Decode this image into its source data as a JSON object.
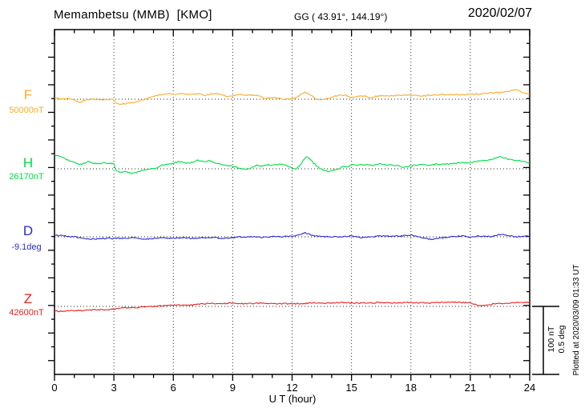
{
  "header": {
    "title": "Memambetsu (MMB)  [KMO]",
    "coords": "GG ( 43.91°, 144.19°)",
    "date": "2020/02/07"
  },
  "axis": {
    "xlabel": "U T (hour)",
    "tick_labels": [
      "0",
      "3",
      "6",
      "9",
      "12",
      "15",
      "18",
      "21",
      "24"
    ]
  },
  "scalebar": {
    "nt_label": "100 nT",
    "deg_label": "0.5 deg"
  },
  "footer": {
    "plotted_at": "Plotted at 2020/03/09 01:33 UT"
  },
  "chart_data": {
    "type": "line",
    "title": "Memambetsu (MMB) [KMO]",
    "subtitle": "GG ( 43.91°, 144.19°)",
    "date": "2020/02/07",
    "xlabel": "U T (hour)",
    "xlim": [
      0,
      24
    ],
    "x_ticks": [
      0,
      3,
      6,
      9,
      12,
      15,
      18,
      21,
      24
    ],
    "grid_hours": [
      3,
      6,
      9,
      12,
      15,
      18,
      21
    ],
    "grid": "dotted",
    "scale_bar": {
      "nT_per_div": 100,
      "deg_per_div": 0.5
    },
    "series": [
      {
        "name": "F",
        "reference": "50000nT",
        "unit": "nT",
        "color": "#FFAB26",
        "offsets": [
          [
            0,
            2
          ],
          [
            0.3,
            0
          ],
          [
            0.7,
            1
          ],
          [
            1,
            -1
          ],
          [
            1.3,
            -5
          ],
          [
            1.6,
            -1
          ],
          [
            2,
            0
          ],
          [
            2.4,
            -1
          ],
          [
            2.8,
            0
          ],
          [
            3,
            -1
          ],
          [
            3.15,
            -7
          ],
          [
            3.4,
            -7
          ],
          [
            3.7,
            -6
          ],
          [
            4,
            -5
          ],
          [
            4.3,
            -2
          ],
          [
            4.6,
            0
          ],
          [
            5,
            4
          ],
          [
            5.4,
            7
          ],
          [
            5.8,
            8
          ],
          [
            6.1,
            7
          ],
          [
            6.4,
            9
          ],
          [
            6.7,
            7
          ],
          [
            7,
            7
          ],
          [
            7.3,
            8
          ],
          [
            7.6,
            5
          ],
          [
            7.9,
            8
          ],
          [
            8.2,
            8
          ],
          [
            8.5,
            6
          ],
          [
            8.8,
            4
          ],
          [
            9.1,
            5
          ],
          [
            9.4,
            7
          ],
          [
            9.7,
            6
          ],
          [
            10,
            6
          ],
          [
            10.3,
            5
          ],
          [
            10.6,
            1
          ],
          [
            10.9,
            2
          ],
          [
            11.2,
            2
          ],
          [
            11.5,
            0
          ],
          [
            11.8,
            0
          ],
          [
            12.1,
            1
          ],
          [
            12.4,
            6
          ],
          [
            12.65,
            10
          ],
          [
            12.9,
            7
          ],
          [
            13.2,
            0
          ],
          [
            13.5,
            -1
          ],
          [
            13.8,
            1
          ],
          [
            14.1,
            4
          ],
          [
            14.4,
            6
          ],
          [
            14.7,
            6
          ],
          [
            15,
            2
          ],
          [
            15.3,
            4
          ],
          [
            15.6,
            5
          ],
          [
            15.9,
            2
          ],
          [
            16.2,
            4
          ],
          [
            16.5,
            5
          ],
          [
            17,
            5
          ],
          [
            17.5,
            6
          ],
          [
            18,
            6
          ],
          [
            18.5,
            5
          ],
          [
            19,
            6
          ],
          [
            19.5,
            7
          ],
          [
            20,
            7
          ],
          [
            20.5,
            7
          ],
          [
            21,
            7
          ],
          [
            21.5,
            8
          ],
          [
            22,
            9
          ],
          [
            22.5,
            10
          ],
          [
            23,
            12
          ],
          [
            23.3,
            15
          ],
          [
            23.6,
            10
          ],
          [
            24,
            7
          ]
        ]
      },
      {
        "name": "H",
        "reference": "26170nT",
        "unit": "nT",
        "color": "#00DD44",
        "offsets": [
          [
            0,
            20
          ],
          [
            0.25,
            19
          ],
          [
            0.5,
            15
          ],
          [
            0.75,
            12
          ],
          [
            1,
            9
          ],
          [
            1.25,
            6
          ],
          [
            1.5,
            8
          ],
          [
            1.75,
            11
          ],
          [
            2,
            8
          ],
          [
            2.25,
            7
          ],
          [
            2.5,
            9
          ],
          [
            2.75,
            8
          ],
          [
            3,
            8
          ],
          [
            3.1,
            -2
          ],
          [
            3.3,
            -5
          ],
          [
            3.6,
            -4
          ],
          [
            3.9,
            -7
          ],
          [
            4.2,
            -5
          ],
          [
            4.5,
            -2
          ],
          [
            4.8,
            0
          ],
          [
            5.1,
            1
          ],
          [
            5.4,
            5
          ],
          [
            5.7,
            6
          ],
          [
            6,
            8
          ],
          [
            6.3,
            11
          ],
          [
            6.6,
            8
          ],
          [
            6.9,
            9
          ],
          [
            7.2,
            12
          ],
          [
            7.5,
            11
          ],
          [
            7.8,
            12
          ],
          [
            8.1,
            9
          ],
          [
            8.4,
            7
          ],
          [
            8.7,
            5
          ],
          [
            9,
            4
          ],
          [
            9.3,
            1
          ],
          [
            9.6,
            -1
          ],
          [
            9.9,
            1
          ],
          [
            10.2,
            5
          ],
          [
            10.5,
            4
          ],
          [
            10.8,
            6
          ],
          [
            11.1,
            6
          ],
          [
            11.4,
            7
          ],
          [
            11.7,
            5
          ],
          [
            12,
            1
          ],
          [
            12.2,
            -1
          ],
          [
            12.45,
            7
          ],
          [
            12.7,
            18
          ],
          [
            12.9,
            14
          ],
          [
            13.1,
            8
          ],
          [
            13.35,
            2
          ],
          [
            13.6,
            -2
          ],
          [
            13.85,
            -4
          ],
          [
            14.1,
            -2
          ],
          [
            14.35,
            0
          ],
          [
            14.6,
            4
          ],
          [
            14.8,
            2
          ],
          [
            15.05,
            7
          ],
          [
            15.3,
            5
          ],
          [
            15.55,
            6
          ],
          [
            15.8,
            6
          ],
          [
            16.1,
            5
          ],
          [
            16.4,
            8
          ],
          [
            16.7,
            6
          ],
          [
            17,
            6
          ],
          [
            17.3,
            5
          ],
          [
            17.6,
            2
          ],
          [
            17.9,
            4
          ],
          [
            18.2,
            5
          ],
          [
            18.5,
            6
          ],
          [
            18.8,
            5
          ],
          [
            19.1,
            6
          ],
          [
            19.4,
            7
          ],
          [
            19.7,
            7
          ],
          [
            20,
            7
          ],
          [
            20.3,
            8
          ],
          [
            20.6,
            9
          ],
          [
            21,
            9
          ],
          [
            21.3,
            11
          ],
          [
            21.6,
            12
          ],
          [
            21.9,
            13
          ],
          [
            22.2,
            15
          ],
          [
            22.5,
            18
          ],
          [
            22.8,
            15
          ],
          [
            23.1,
            13
          ],
          [
            23.4,
            12
          ],
          [
            23.7,
            11
          ],
          [
            24,
            8
          ]
        ]
      },
      {
        "name": "D",
        "reference": "-9.1deg",
        "unit": "deg",
        "color": "#2A2ACD",
        "offsets": [
          [
            0,
            0.012
          ],
          [
            0.5,
            0.006
          ],
          [
            1,
            0
          ],
          [
            1.5,
            -0.012
          ],
          [
            2,
            -0.018
          ],
          [
            2.5,
            -0.012
          ],
          [
            3,
            -0.012
          ],
          [
            3.5,
            -0.012
          ],
          [
            4,
            -0.006
          ],
          [
            4.5,
            -0.018
          ],
          [
            5,
            -0.012
          ],
          [
            5.5,
            -0.006
          ],
          [
            6,
            -0.012
          ],
          [
            6.5,
            -0.006
          ],
          [
            7,
            -0.012
          ],
          [
            7.5,
            -0.006
          ],
          [
            8,
            -0.006
          ],
          [
            8.5,
            -0.012
          ],
          [
            9,
            -0.006
          ],
          [
            9.5,
            0
          ],
          [
            10,
            0
          ],
          [
            10.5,
            -0.006
          ],
          [
            11,
            0
          ],
          [
            11.5,
            0
          ],
          [
            12,
            0.006
          ],
          [
            12.4,
            0.018
          ],
          [
            12.65,
            0.03
          ],
          [
            12.9,
            0.018
          ],
          [
            13.2,
            0.006
          ],
          [
            13.5,
            0
          ],
          [
            14,
            0
          ],
          [
            14.5,
            0
          ],
          [
            15,
            0.006
          ],
          [
            15.5,
            -0.006
          ],
          [
            16,
            0
          ],
          [
            16.5,
            0.006
          ],
          [
            17,
            0.006
          ],
          [
            17.5,
            0.006
          ],
          [
            18,
            0.012
          ],
          [
            18.3,
            0.006
          ],
          [
            18.6,
            -0.012
          ],
          [
            19,
            -0.018
          ],
          [
            19.4,
            -0.012
          ],
          [
            19.7,
            -0.006
          ],
          [
            20,
            0
          ],
          [
            20.5,
            0.006
          ],
          [
            21,
            0
          ],
          [
            21.5,
            0.006
          ],
          [
            22,
            0
          ],
          [
            22.3,
            0.012
          ],
          [
            22.6,
            0.018
          ],
          [
            23,
            0.006
          ],
          [
            23.4,
            0
          ],
          [
            23.7,
            0.006
          ],
          [
            24,
            0
          ]
        ]
      },
      {
        "name": "Z",
        "reference": "42600nT",
        "unit": "nT",
        "color": "#E62222",
        "offsets": [
          [
            0,
            -7
          ],
          [
            0.5,
            -7
          ],
          [
            1,
            -6
          ],
          [
            1.5,
            -6
          ],
          [
            2,
            -5
          ],
          [
            2.5,
            -5
          ],
          [
            3,
            -4
          ],
          [
            3.5,
            -2
          ],
          [
            4,
            -2
          ],
          [
            4.5,
            -1
          ],
          [
            5,
            0
          ],
          [
            5.5,
            1
          ],
          [
            6,
            2
          ],
          [
            6.5,
            2
          ],
          [
            7,
            2
          ],
          [
            7.5,
            4
          ],
          [
            8,
            4
          ],
          [
            8.5,
            4
          ],
          [
            9,
            5
          ],
          [
            9.5,
            4
          ],
          [
            10,
            4
          ],
          [
            10.5,
            5
          ],
          [
            11,
            4
          ],
          [
            11.5,
            4
          ],
          [
            12,
            4
          ],
          [
            12.5,
            4
          ],
          [
            13,
            5
          ],
          [
            13.5,
            5
          ],
          [
            14,
            5
          ],
          [
            14.5,
            6
          ],
          [
            15,
            5
          ],
          [
            15.5,
            5
          ],
          [
            16,
            5
          ],
          [
            16.5,
            6
          ],
          [
            17,
            5
          ],
          [
            17.5,
            5
          ],
          [
            18,
            6
          ],
          [
            18.5,
            5
          ],
          [
            19,
            5
          ],
          [
            19.5,
            6
          ],
          [
            20,
            6
          ],
          [
            20.5,
            6
          ],
          [
            21,
            5
          ],
          [
            21.3,
            2
          ],
          [
            21.6,
            1
          ],
          [
            21.9,
            2
          ],
          [
            22.2,
            4
          ],
          [
            22.6,
            4
          ],
          [
            23,
            5
          ],
          [
            23.4,
            6
          ],
          [
            23.7,
            6
          ],
          [
            24,
            6
          ]
        ]
      }
    ]
  }
}
